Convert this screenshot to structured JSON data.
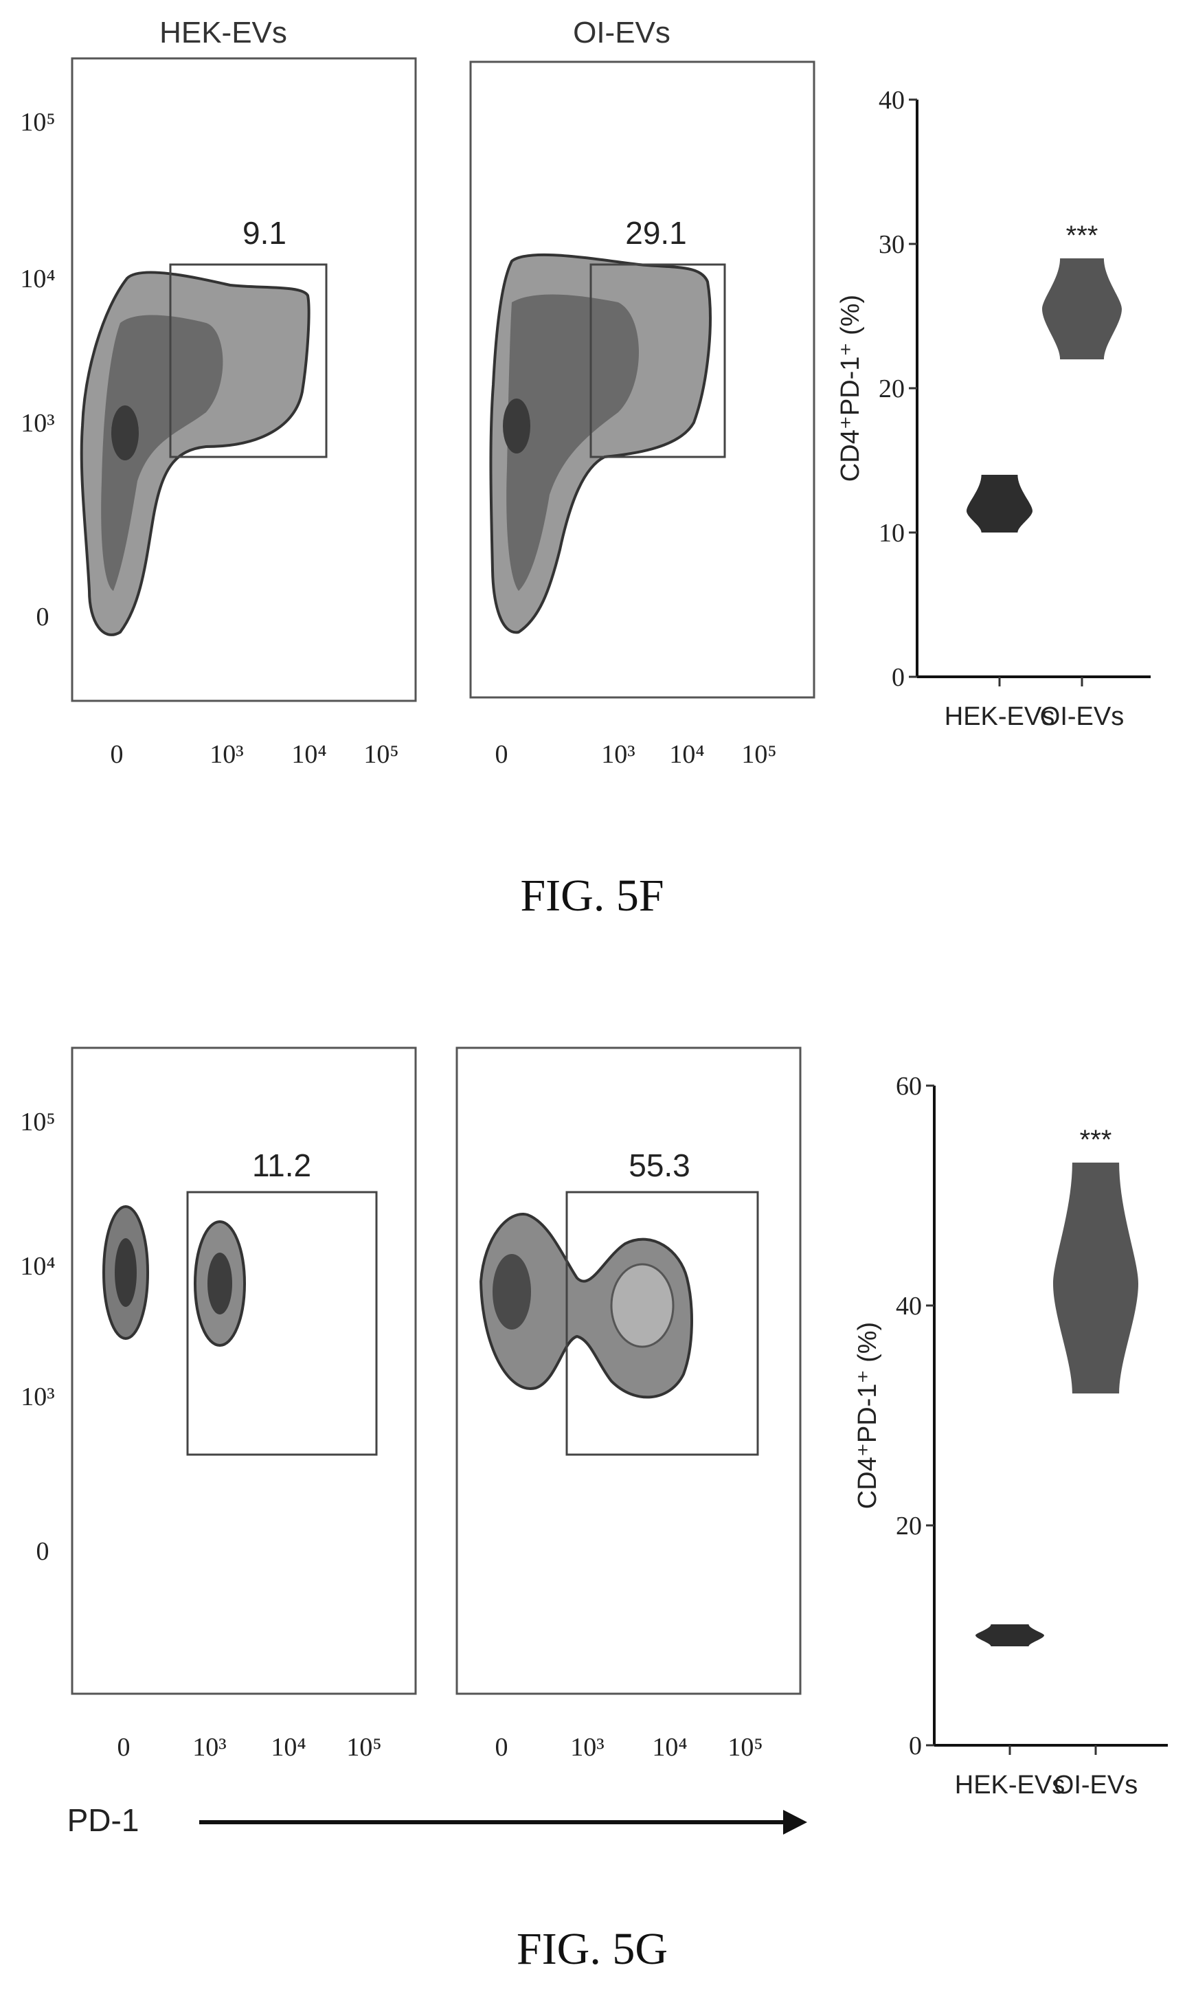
{
  "fig_5f": {
    "caption": "FIG. 5F",
    "flow_panels": [
      {
        "title": "HEK-EVs",
        "gate_value": "9.1"
      },
      {
        "title": "OI-EVs",
        "gate_value": "29.1"
      }
    ],
    "flow_x_ticks": [
      "0",
      "10³",
      "10⁴",
      "10⁵"
    ],
    "flow_y_ticks": [
      "10⁵",
      "10⁴",
      "10³",
      "0"
    ]
  },
  "fig_5g": {
    "caption": "FIG. 5G",
    "flow_panels": [
      {
        "title": "",
        "gate_value": "11.2"
      },
      {
        "title": "",
        "gate_value": "55.3"
      }
    ],
    "flow_x_ticks": [
      "0",
      "10³",
      "10⁴",
      "10⁵"
    ],
    "flow_y_ticks": [
      "10⁵",
      "10⁴",
      "10³",
      "0"
    ],
    "x_axis_marker": "PD-1"
  },
  "colors": {
    "ink": "#222222",
    "density_dark": "#2d2d2d",
    "density_mid": "#6a6a6a",
    "density_light": "#9a9a9a"
  },
  "chart_data": [
    {
      "type": "violin",
      "figure": "FIG. 5F",
      "title": "",
      "ylabel": "CD4⁺PD-1⁺ (%)",
      "categories": [
        "HEK-EVs",
        "OI-EVs"
      ],
      "series": [
        {
          "category": "HEK-EVs",
          "min": 10,
          "max": 14,
          "median": 11.5
        },
        {
          "category": "OI-EVs",
          "min": 22,
          "max": 29,
          "median": 25.5
        }
      ],
      "ylim": [
        0,
        40
      ],
      "yticks": [
        0,
        10,
        20,
        30,
        40
      ],
      "significance": [
        "",
        "***"
      ]
    },
    {
      "type": "violin",
      "figure": "FIG. 5G",
      "title": "",
      "ylabel": "CD4⁺PD-1⁺ (%)",
      "categories": [
        "HEK-EVs",
        "OI-EVs"
      ],
      "series": [
        {
          "category": "HEK-EVs",
          "min": 9,
          "max": 11,
          "median": 10
        },
        {
          "category": "OI-EVs",
          "min": 32,
          "max": 53,
          "median": 42
        }
      ],
      "ylim": [
        0,
        60
      ],
      "yticks": [
        0,
        20,
        40,
        60
      ],
      "significance": [
        "",
        "***"
      ]
    }
  ]
}
